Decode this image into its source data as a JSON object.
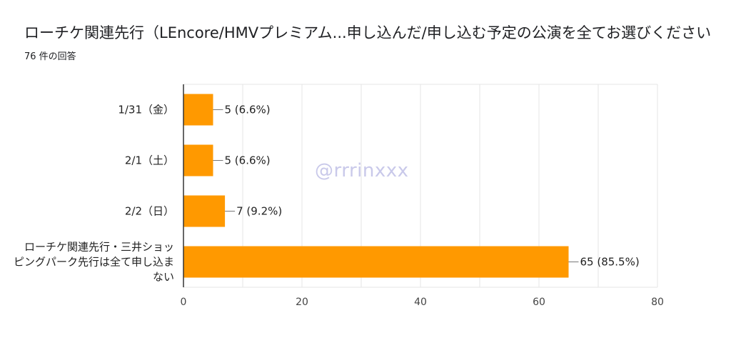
{
  "title": "ローチケ関連先行（LEncore/HMVプレミアム...申し込んだ/申し込む予定の公演を全てお選びください",
  "subtitle": "76 件の回答",
  "watermark": "@rrrinxxx",
  "colors": {
    "bar": "#ff9900",
    "grid": "#e6e6e6",
    "axis": "#333333"
  },
  "chart_data": {
    "type": "bar",
    "orientation": "horizontal",
    "categories": [
      [
        "1/31（金）"
      ],
      [
        "2/1（土）"
      ],
      [
        "2/2（日）"
      ],
      [
        "ローチケ関連先行・三井ショッ",
        "ピングパーク先行は全て申し込ま",
        "ない"
      ]
    ],
    "values": [
      5,
      5,
      7,
      65
    ],
    "data_labels": [
      "5 (6.6%)",
      "5 (6.6%)",
      "7 (9.2%)",
      "65 (85.5%)"
    ],
    "xlim": [
      0,
      80
    ],
    "xticks": [
      0,
      20,
      40,
      60,
      80
    ],
    "grid": true
  }
}
